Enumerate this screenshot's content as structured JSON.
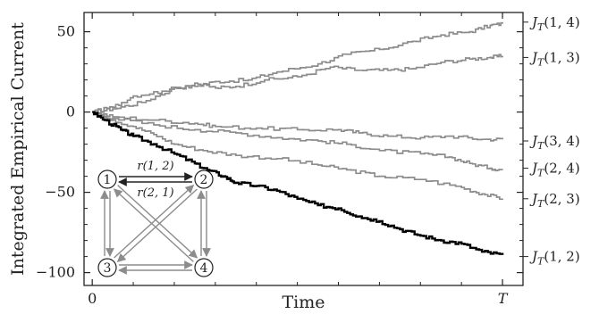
{
  "chart_data": {
    "type": "line",
    "xlabel": "Time",
    "ylabel": "Integrated Empirical Current",
    "xticks": [
      {
        "value": 0,
        "label": "0"
      },
      {
        "value": 1,
        "label": "T"
      }
    ],
    "yticks": [
      50,
      0,
      -50,
      -100
    ],
    "xlim": [
      -0.02,
      1.05
    ],
    "ylim": [
      -108,
      62
    ],
    "grid": false,
    "colors": {
      "highlight": "#000000",
      "other": "#8c8c8c"
    },
    "series": [
      {
        "name": "J_T(1,4)",
        "highlight": false,
        "label_y": 56,
        "points": [
          [
            0,
            0
          ],
          [
            0.05,
            2
          ],
          [
            0.12,
            6
          ],
          [
            0.2,
            15
          ],
          [
            0.25,
            16
          ],
          [
            0.3,
            19
          ],
          [
            0.38,
            20
          ],
          [
            0.45,
            25
          ],
          [
            0.55,
            30
          ],
          [
            0.62,
            36
          ],
          [
            0.7,
            39
          ],
          [
            0.78,
            44
          ],
          [
            0.85,
            48
          ],
          [
            0.92,
            50
          ],
          [
            0.97,
            54
          ],
          [
            1.0,
            55
          ]
        ]
      },
      {
        "name": "J_T(1,3)",
        "highlight": false,
        "label_y": 34,
        "points": [
          [
            0,
            0
          ],
          [
            0.05,
            3
          ],
          [
            0.1,
            10
          ],
          [
            0.17,
            13
          ],
          [
            0.25,
            18
          ],
          [
            0.3,
            15
          ],
          [
            0.35,
            16
          ],
          [
            0.42,
            20
          ],
          [
            0.5,
            22
          ],
          [
            0.58,
            28
          ],
          [
            0.65,
            26
          ],
          [
            0.72,
            26
          ],
          [
            0.78,
            27
          ],
          [
            0.85,
            31
          ],
          [
            0.92,
            33
          ],
          [
            0.97,
            34
          ],
          [
            1.0,
            35
          ]
        ]
      },
      {
        "name": "J_T(3,4)",
        "highlight": false,
        "label_y": -18,
        "points": [
          [
            0,
            0
          ],
          [
            0.05,
            -3
          ],
          [
            0.15,
            -5
          ],
          [
            0.25,
            -7
          ],
          [
            0.3,
            -9
          ],
          [
            0.4,
            -10
          ],
          [
            0.5,
            -11
          ],
          [
            0.6,
            -11
          ],
          [
            0.65,
            -13
          ],
          [
            0.72,
            -15
          ],
          [
            0.8,
            -16
          ],
          [
            0.87,
            -15
          ],
          [
            0.95,
            -17
          ],
          [
            1.0,
            -17
          ]
        ]
      },
      {
        "name": "J_T(2,4)",
        "highlight": false,
        "label_y": -35,
        "points": [
          [
            0,
            0
          ],
          [
            0.05,
            -4
          ],
          [
            0.15,
            -8
          ],
          [
            0.25,
            -11
          ],
          [
            0.35,
            -13
          ],
          [
            0.45,
            -16
          ],
          [
            0.55,
            -18
          ],
          [
            0.62,
            -20
          ],
          [
            0.7,
            -24
          ],
          [
            0.8,
            -26
          ],
          [
            0.87,
            -28
          ],
          [
            0.92,
            -32
          ],
          [
            0.97,
            -35
          ],
          [
            1.0,
            -36
          ]
        ]
      },
      {
        "name": "J_T(2,3)",
        "highlight": false,
        "label_y": -54,
        "points": [
          [
            0,
            0
          ],
          [
            0.05,
            -5
          ],
          [
            0.1,
            -9
          ],
          [
            0.15,
            -14
          ],
          [
            0.2,
            -20
          ],
          [
            0.27,
            -24
          ],
          [
            0.35,
            -27
          ],
          [
            0.45,
            -29
          ],
          [
            0.55,
            -33
          ],
          [
            0.62,
            -36
          ],
          [
            0.7,
            -40
          ],
          [
            0.8,
            -42
          ],
          [
            0.9,
            -47
          ],
          [
            0.95,
            -51
          ],
          [
            1.0,
            -54
          ]
        ]
      },
      {
        "name": "J_T(1,2)",
        "highlight": true,
        "label_y": -90,
        "points": [
          [
            0,
            0
          ],
          [
            0.03,
            -5
          ],
          [
            0.07,
            -11
          ],
          [
            0.1,
            -15
          ],
          [
            0.15,
            -20
          ],
          [
            0.2,
            -26
          ],
          [
            0.25,
            -32
          ],
          [
            0.28,
            -36
          ],
          [
            0.32,
            -40
          ],
          [
            0.35,
            -44
          ],
          [
            0.4,
            -46
          ],
          [
            0.45,
            -49
          ],
          [
            0.5,
            -54
          ],
          [
            0.55,
            -58
          ],
          [
            0.6,
            -60
          ],
          [
            0.65,
            -65
          ],
          [
            0.7,
            -68
          ],
          [
            0.75,
            -73
          ],
          [
            0.8,
            -77
          ],
          [
            0.85,
            -80
          ],
          [
            0.9,
            -82
          ],
          [
            0.95,
            -87
          ],
          [
            1.0,
            -89
          ]
        ]
      }
    ],
    "inset": {
      "nodes": [
        {
          "id": "1",
          "label": "1"
        },
        {
          "id": "2",
          "label": "2"
        },
        {
          "id": "3",
          "label": "3"
        },
        {
          "id": "4",
          "label": "4"
        }
      ],
      "rate_labels": [
        "r(1, 2)",
        "r(2, 1)"
      ]
    }
  }
}
